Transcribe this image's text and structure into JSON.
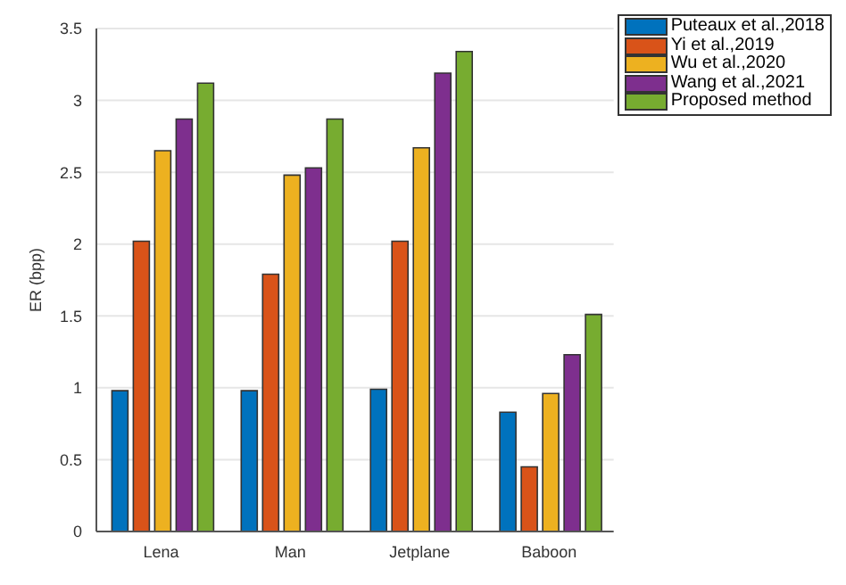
{
  "chart_data": {
    "type": "bar",
    "ylabel": "ER (bpp)",
    "categories": [
      "Lena",
      "Man",
      "Jetplane",
      "Baboon"
    ],
    "series": [
      {
        "name": "Puteaux et al.,2018",
        "color": "#0072bd",
        "values": [
          0.98,
          0.98,
          0.99,
          0.83
        ]
      },
      {
        "name": "Yi et al.,2019",
        "color": "#d95319",
        "values": [
          2.02,
          1.79,
          2.02,
          0.45
        ]
      },
      {
        "name": "Wu et al.,2020",
        "color": "#edb120",
        "values": [
          2.65,
          2.48,
          2.67,
          0.96
        ]
      },
      {
        "name": "Wang et al.,2021",
        "color": "#7e2f8e",
        "values": [
          2.87,
          2.53,
          3.19,
          1.23
        ]
      },
      {
        "name": "Proposed method",
        "color": "#77ac30",
        "values": [
          3.12,
          2.87,
          3.34,
          1.51
        ]
      }
    ],
    "ylim": [
      0,
      3.5
    ],
    "yticks": [
      0,
      0.5,
      1,
      1.5,
      2,
      2.5,
      3,
      3.5
    ],
    "grid": "y",
    "legend": "top right"
  }
}
